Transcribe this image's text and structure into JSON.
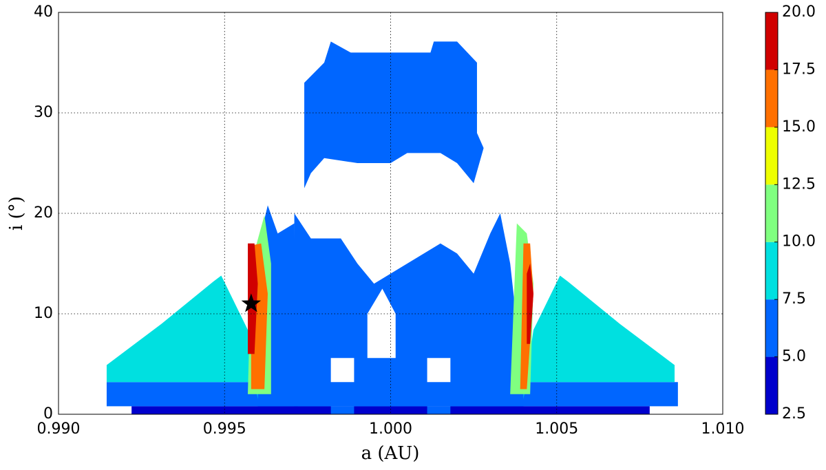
{
  "chart_data": {
    "type": "contour",
    "xlabel": "a (AU)",
    "ylabel": "i (°)",
    "xlim": [
      0.99,
      1.01
    ],
    "xticks": [
      {
        "value": 0.99,
        "label": "0.990"
      },
      {
        "value": 0.995,
        "label": "0.995"
      },
      {
        "value": 1,
        "label": "1.000"
      },
      {
        "value": 1.005,
        "label": "1.005"
      },
      {
        "value": 1.01,
        "label": "1.010"
      }
    ],
    "ylim": [
      0,
      40
    ],
    "yticks": [
      0,
      10,
      20,
      30,
      40
    ],
    "grid": true,
    "colorbar": {
      "ticks": [
        2.5,
        {
          "value": 5,
          "label": "5.0"
        },
        7.5,
        {
          "value": 10,
          "label": "10.0"
        },
        12.5,
        {
          "value": 15,
          "label": "15.0"
        },
        17.5,
        {
          "value": 20,
          "label": "20.0"
        }
      ],
      "colors": [
        "#0000cc",
        "#0066ff",
        "#00e0e0",
        "#80ff80",
        "#eeff00",
        "#ff7000",
        "#d00000"
      ]
    },
    "regions": [
      {
        "level": 0,
        "rings": [
          [
            [
              0.9922,
              0
            ],
            [
              0.9922,
              0.8
            ],
            [
              1.0078,
              0.8
            ],
            [
              1.0078,
              0
            ]
          ]
        ]
      },
      {
        "level": 1,
        "rings": [
          [
            [
              0.99145,
              0.8
            ],
            [
              0.99145,
              3.2
            ],
            [
              1.00865,
              3.2
            ],
            [
              1.00865,
              0.8
            ]
          ]
        ]
      },
      {
        "level": 2,
        "rings": [
          [
            [
              0.99145,
              3.2
            ],
            [
              0.99145,
              4.9
            ],
            [
              0.9931,
              9.0
            ],
            [
              0.99466,
              13.2
            ],
            [
              0.9949,
              13.8
            ],
            [
              0.9957,
              8.4
            ],
            [
              0.996,
              1.5
            ],
            [
              0.996,
              3.2
            ]
          ]
        ]
      },
      {
        "level": 2,
        "rings": [
          [
            [
              1.00855,
              3.2
            ],
            [
              1.00855,
              4.9
            ],
            [
              1.0069,
              9.0
            ],
            [
              1.00534,
              13.2
            ],
            [
              1.0051,
              13.8
            ],
            [
              1.0043,
              8.4
            ],
            [
              1.004,
              1.5
            ],
            [
              1.004,
              3.2
            ]
          ]
        ]
      },
      {
        "level": 1,
        "rings": [
          [
            [
              0.996,
              0.8
            ],
            [
              0.9961,
              18
            ],
            [
              0.9963,
              20.8
            ],
            [
              0.9966,
              18
            ],
            [
              0.9971,
              19
            ],
            [
              0.9972,
              0.8
            ]
          ]
        ]
      },
      {
        "level": 1,
        "rings": [
          [
            [
              0.9971,
              0.8
            ],
            [
              0.9971,
              20
            ],
            [
              0.9976,
              17.5
            ],
            [
              0.9985,
              17.5
            ],
            [
              0.999,
              15
            ],
            [
              0.9995,
              13
            ],
            [
              1.0,
              14
            ],
            [
              1.0005,
              15
            ],
            [
              1.0015,
              17
            ],
            [
              1.002,
              16
            ],
            [
              1.0025,
              14
            ],
            [
              1.003,
              18
            ],
            [
              1.0033,
              20
            ],
            [
              1.0036,
              15
            ],
            [
              1.004,
              3
            ],
            [
              1.004,
              0.8
            ]
          ],
          [
            [
              0.9982,
              0
            ],
            [
              0.9982,
              5.6
            ],
            [
              0.9989,
              5.6
            ],
            [
              0.9989,
              0
            ]
          ],
          [
            [
              1.0011,
              0
            ],
            [
              1.0011,
              5.6
            ],
            [
              1.0018,
              5.6
            ],
            [
              1.0018,
              0
            ]
          ],
          [
            [
              0.9993,
              5.6
            ],
            [
              0.9993,
              10
            ],
            [
              0.99975,
              12.5
            ],
            [
              1.00015,
              10
            ],
            [
              1.00015,
              5.6
            ]
          ]
        ]
      },
      {
        "level": 1,
        "rings": [
          [
            [
              0.9974,
              22.5
            ],
            [
              0.9974,
              33
            ],
            [
              0.998,
              35
            ],
            [
              0.9982,
              37.1
            ],
            [
              0.9988,
              36
            ],
            [
              1.0012,
              36
            ],
            [
              1.0013,
              37.1
            ],
            [
              1.002,
              37.1
            ],
            [
              1.0026,
              35
            ],
            [
              1.0026,
              28
            ],
            [
              1.0028,
              26.5
            ],
            [
              1.0025,
              23
            ],
            [
              1.002,
              25
            ],
            [
              1.0015,
              26
            ],
            [
              1.0005,
              26
            ],
            [
              1.0,
              25
            ],
            [
              0.999,
              25
            ],
            [
              0.998,
              25.5
            ],
            [
              0.9976,
              24
            ]
          ]
        ]
      },
      {
        "level": 3,
        "rings": [
          [
            [
              0.9957,
              2
            ],
            [
              0.9958,
              15
            ],
            [
              0.9962,
              19.8
            ],
            [
              0.9964,
              15
            ],
            [
              0.9964,
              2
            ]
          ]
        ]
      },
      {
        "level": 5,
        "rings": [
          [
            [
              0.9958,
              2.5
            ],
            [
              0.9958,
              16.8
            ],
            [
              0.9961,
              17
            ],
            [
              0.9963,
              12
            ],
            [
              0.9962,
              2.5
            ]
          ]
        ]
      },
      {
        "level": 6,
        "rings": [
          [
            [
              0.9957,
              6
            ],
            [
              0.9957,
              17
            ],
            [
              0.9959,
              17
            ],
            [
              0.996,
              13
            ],
            [
              0.9959,
              6
            ]
          ]
        ]
      },
      {
        "level": 3,
        "rings": [
          [
            [
              1.0036,
              2
            ],
            [
              1.0038,
              19
            ],
            [
              1.0041,
              18
            ],
            [
              1.0043,
              13
            ],
            [
              1.0042,
              2
            ]
          ]
        ]
      },
      {
        "level": 5,
        "rings": [
          [
            [
              1.0039,
              2.5
            ],
            [
              1.004,
              17
            ],
            [
              1.0042,
              17
            ],
            [
              1.0043,
              12
            ],
            [
              1.0041,
              2.5
            ]
          ]
        ]
      },
      {
        "level": 6,
        "rings": [
          [
            [
              1.0041,
              7
            ],
            [
              1.0041,
              14
            ],
            [
              1.0042,
              15
            ],
            [
              1.0043,
              12
            ],
            [
              1.0042,
              7
            ]
          ]
        ]
      }
    ],
    "marker": {
      "x": 0.9958,
      "y": 11,
      "color": "#000000"
    }
  }
}
